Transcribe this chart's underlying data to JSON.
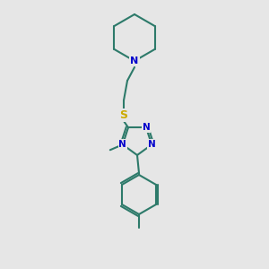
{
  "background_color": "#e6e6e6",
  "bond_color": "#2d7a6a",
  "atom_color_N": "#0000cc",
  "atom_color_S": "#ccaa00",
  "bond_width": 1.5,
  "fig_size": [
    3.0,
    3.0
  ],
  "dpi": 100,
  "xlim": [
    0,
    300
  ],
  "ylim": [
    0,
    300
  ]
}
